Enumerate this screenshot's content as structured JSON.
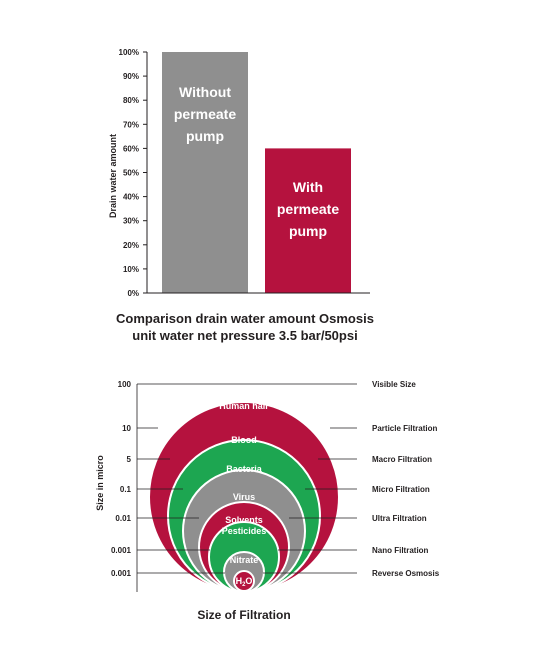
{
  "colors": {
    "gray": "#8f8f8f",
    "red": "#b5123e",
    "green": "#1da651",
    "white": "#ffffff",
    "text": "#231f20"
  },
  "chart_data": [
    {
      "type": "bar",
      "categories": [
        "Without permeate pump",
        "With permeate pump"
      ],
      "category_lines": [
        [
          "Without",
          "permeate",
          "pump"
        ],
        [
          "With",
          "permeate",
          "pump"
        ]
      ],
      "values": [
        100,
        60
      ],
      "bar_colors": [
        "#8f8f8f",
        "#b5123e"
      ],
      "ylabel": "Drain water amount",
      "ylim": [
        0,
        100
      ],
      "yticks": [
        "0%",
        "10%",
        "20%",
        "30%",
        "40%",
        "50%",
        "60%",
        "70%",
        "80%",
        "90%",
        "100%"
      ],
      "caption_lines": [
        "Comparison drain water amount Osmosis",
        "unit water net pressure 3.5 bar/50psi"
      ],
      "grid": false
    },
    {
      "type": "nested-circles",
      "ylabel": "Size in micro",
      "xlabel": "Size of Filtration",
      "rows": [
        {
          "size": "100",
          "particle": "",
          "filtration": "Visible Size"
        },
        {
          "size": "10",
          "particle": "Human hair",
          "filtration": "Particle Filtration",
          "color": "#b5123e"
        },
        {
          "size": "5",
          "particle": "Blood",
          "filtration": "Macro Filtration",
          "color": "#1da651"
        },
        {
          "size": "0.1",
          "particle": "Bacteria",
          "filtration": "Micro Filtration",
          "color": "#8f8f8f"
        },
        {
          "size": "0.01",
          "particle": "Virus",
          "filtration": "Ultra Filtration",
          "color": "#b5123e"
        },
        {
          "size": "0.001",
          "particle": "Solvents Pesticides",
          "particle_lines": [
            "Solvents",
            "Pesticides"
          ],
          "filtration": "Nano Filtration",
          "color": "#1da651"
        },
        {
          "size": "0.001",
          "particle": "Nitrate",
          "filtration": "Reverse Osmosis",
          "color": "#8f8f8f"
        }
      ],
      "innermost": {
        "label_main": "H",
        "label_sub": "2",
        "label_end": "O",
        "color": "#b5123e"
      }
    }
  ]
}
